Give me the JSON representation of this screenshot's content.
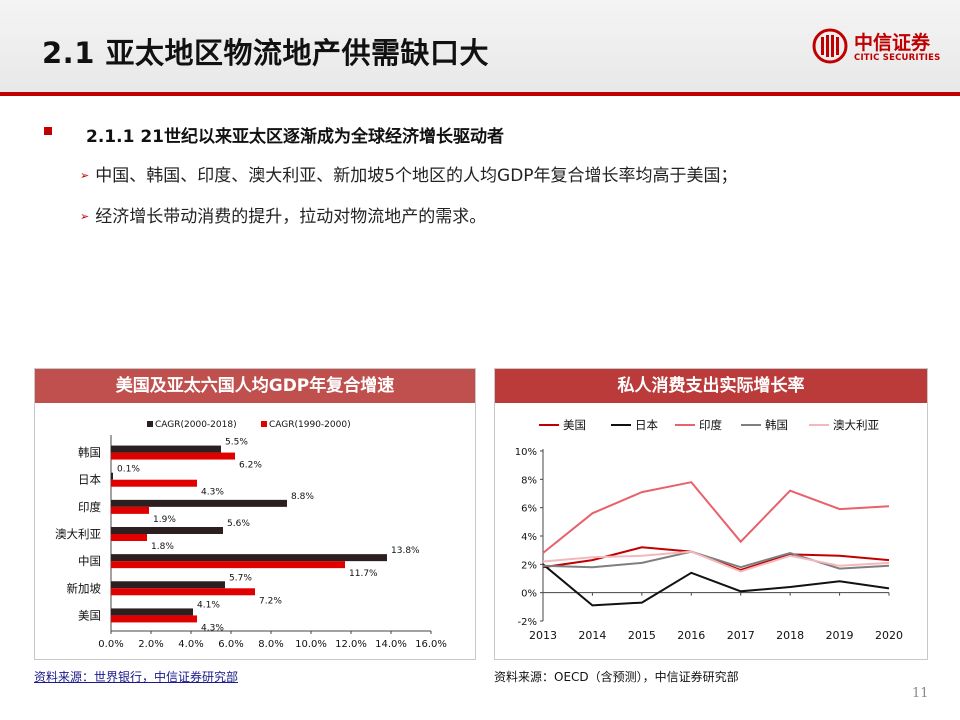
{
  "header": {
    "title": "2.1 亚太地区物流地产供需缺口大",
    "logo_cn": "中信证券",
    "logo_en": "CITIC SECURITIES"
  },
  "bullets": {
    "main": "2.1.1 21世纪以来亚太区逐渐成为全球经济增长驱动者",
    "sub": [
      "中国、韩国、印度、澳大利亚、新加坡5个地区的人均GDP年复合增长率均高于美国；",
      "经济增长带动消费的提升，拉动对物流地产的需求。"
    ]
  },
  "panels": {
    "left_title": "美国及亚太六国人均GDP年复合增速",
    "right_title": "私人消费支出实际增长率",
    "left_source": "资料来源：世界银行，中信证券研究部",
    "right_source": "资料来源：OECD（含预测），中信证券研究部"
  },
  "page_number": "11",
  "chart_data": [
    {
      "type": "bar",
      "orientation": "horizontal",
      "categories": [
        "韩国",
        "日本",
        "印度",
        "澳大利亚",
        "中国",
        "新加坡",
        "美国"
      ],
      "series": [
        {
          "name": "CAGR(2000-2018)",
          "color": "#2b1f1f",
          "values": [
            5.5,
            0.1,
            8.8,
            5.6,
            13.8,
            5.7,
            4.1
          ],
          "labels": [
            "5.5%",
            "0.1%",
            "8.8%",
            "5.6%",
            "13.8%",
            "5.7%",
            "4.1%"
          ]
        },
        {
          "name": "CAGR(1990-2000)",
          "color": "#e00000",
          "values": [
            6.2,
            4.3,
            1.9,
            1.8,
            11.7,
            7.2,
            4.3
          ],
          "labels": [
            "6.2%",
            "4.3%",
            "1.9%",
            "1.8%",
            "11.7%",
            "7.2%",
            "4.3%"
          ]
        }
      ],
      "xlim": [
        0,
        16
      ],
      "xticks": [
        "0.0%",
        "2.0%",
        "4.0%",
        "6.0%",
        "8.0%",
        "10.0%",
        "12.0%",
        "14.0%",
        "16.0%"
      ],
      "legend_position": "top"
    },
    {
      "type": "line",
      "x": [
        "2013",
        "2014",
        "2015",
        "2016",
        "2017",
        "2018",
        "2019",
        "2020"
      ],
      "series": [
        {
          "name": "美国",
          "color": "#c00000",
          "values": [
            1.8,
            2.3,
            3.2,
            2.9,
            1.6,
            2.7,
            2.6,
            2.3
          ]
        },
        {
          "name": "日本",
          "color": "#111111",
          "values": [
            2.0,
            -0.9,
            -0.7,
            1.4,
            0.1,
            0.4,
            0.8,
            0.3
          ]
        },
        {
          "name": "印度",
          "color": "#e8616b",
          "values": [
            2.8,
            5.6,
            7.1,
            7.8,
            3.6,
            7.2,
            5.9,
            6.1
          ]
        },
        {
          "name": "韩国",
          "color": "#7f7f7f",
          "values": [
            1.9,
            1.8,
            2.1,
            2.9,
            1.8,
            2.8,
            1.7,
            1.9
          ]
        },
        {
          "name": "澳大利亚",
          "color": "#f4b8bc",
          "values": [
            2.2,
            2.5,
            2.6,
            2.9,
            1.5,
            2.6,
            1.9,
            2.1
          ]
        }
      ],
      "ylim": [
        -2,
        10
      ],
      "yticks": [
        "-2%",
        "0%",
        "2%",
        "4%",
        "6%",
        "8%",
        "10%"
      ],
      "legend_position": "top"
    }
  ]
}
